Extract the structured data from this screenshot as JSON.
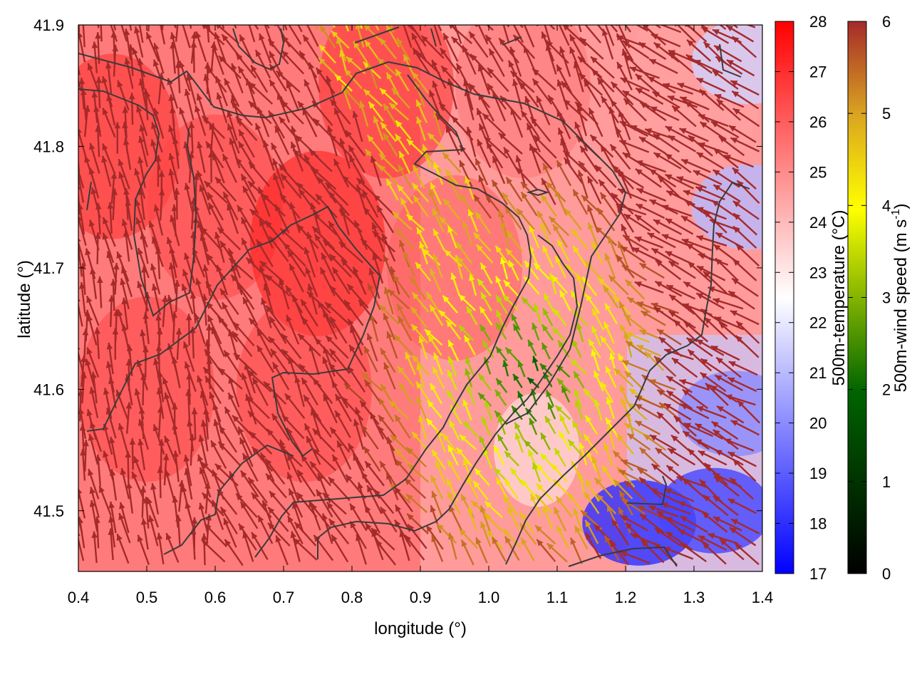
{
  "chart_data": {
    "type": "heatmap",
    "title": "",
    "xlabel": "longitude (°)",
    "ylabel": "latitude (°)",
    "xlim": [
      0.4,
      1.4
    ],
    "ylim": [
      41.45,
      41.9
    ],
    "x_ticks": [
      "0.4",
      "0.5",
      "0.6",
      "0.7",
      "0.8",
      "0.9",
      "1.0",
      "1.1",
      "1.2",
      "1.3",
      "1.4"
    ],
    "y_ticks": [
      "41.5",
      "41.6",
      "41.7",
      "41.8",
      "41.9"
    ],
    "layers": {
      "field": "500m-temperature",
      "vectors": "500m wind arrows colored by speed",
      "contours": "terrain contour lines (dark gray)"
    },
    "temperature_colorbar": {
      "label": "500m-temperature (°C)",
      "range": [
        17,
        28
      ],
      "ticks": [
        "17",
        "18",
        "19",
        "20",
        "21",
        "22",
        "23",
        "24",
        "25",
        "26",
        "27",
        "28"
      ],
      "colors": [
        "#0000ff",
        "#ffffff",
        "#ff0000"
      ]
    },
    "wind_colorbar": {
      "label_main": "500m-wind speed (m s",
      "label_sup": "-1",
      "label_end": ")",
      "range": [
        0,
        6
      ],
      "ticks": [
        "0",
        "1",
        "2",
        "3",
        "4",
        "5",
        "6"
      ],
      "colors": [
        "#000000",
        "#006400",
        "#ffff00",
        "#daa520",
        "#a52a2a"
      ]
    },
    "warm_regions": [
      {
        "lon": 0.45,
        "lat": 41.8,
        "temp": 27
      },
      {
        "lon": 0.5,
        "lat": 41.6,
        "temp": 26.5
      },
      {
        "lon": 0.6,
        "lat": 41.75,
        "temp": 26.5
      },
      {
        "lon": 0.75,
        "lat": 41.72,
        "temp": 27.5
      },
      {
        "lon": 0.73,
        "lat": 41.6,
        "temp": 26.5
      },
      {
        "lon": 0.85,
        "lat": 41.85,
        "temp": 27
      },
      {
        "lon": 0.95,
        "lat": 41.7,
        "temp": 26
      },
      {
        "lon": 1.05,
        "lat": 41.85,
        "temp": 25.5
      },
      {
        "lon": 1.3,
        "lat": 41.85,
        "temp": 24.5
      }
    ],
    "cold_regions": [
      {
        "lon": 1.22,
        "lat": 41.49,
        "temp": 18
      },
      {
        "lon": 1.33,
        "lat": 41.5,
        "temp": 18.5
      },
      {
        "lon": 1.36,
        "lat": 41.58,
        "temp": 20
      },
      {
        "lon": 1.38,
        "lat": 41.75,
        "temp": 21
      },
      {
        "lon": 1.38,
        "lat": 41.87,
        "temp": 21.5
      }
    ],
    "weak_wind_zone": {
      "lon": 1.06,
      "lat": 41.6,
      "min_speed": 1.5
    }
  }
}
